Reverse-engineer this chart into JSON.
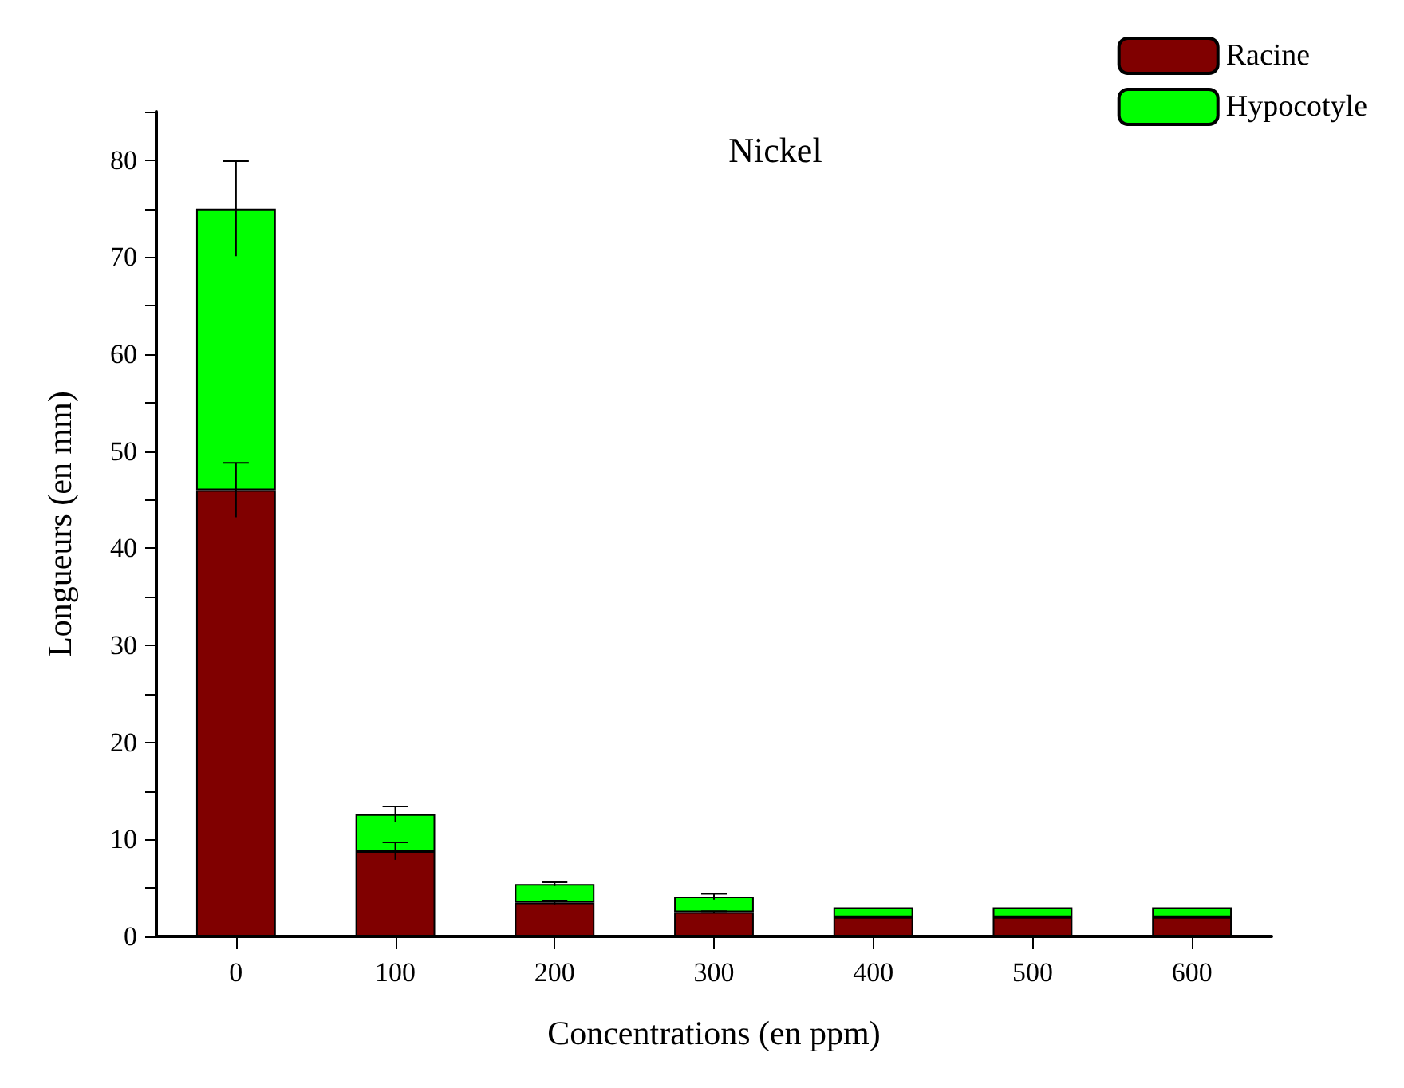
{
  "chart_data": {
    "type": "bar",
    "title": "Nickel",
    "xlabel": "Concentrations (en ppm)",
    "ylabel": "Longueurs (en mm)",
    "categories": [
      "0",
      "100",
      "200",
      "300",
      "400",
      "500",
      "600"
    ],
    "stacked": true,
    "series": [
      {
        "name": "Racine",
        "color": "#800000",
        "values": [
          46.0,
          8.8,
          3.5,
          2.5,
          2.0,
          2.0,
          2.0
        ],
        "errors": [
          2.8,
          0.9,
          0.2,
          0.1,
          null,
          null,
          null
        ]
      },
      {
        "name": "Hypocotyle",
        "color": "#00ff00",
        "values": [
          29.0,
          3.8,
          1.9,
          1.6,
          1.0,
          1.0,
          1.0
        ],
        "errors": [
          4.9,
          0.8,
          0.2,
          0.3,
          null,
          null,
          null
        ]
      }
    ],
    "ylim": [
      0,
      85
    ],
    "yticks": [
      0,
      10,
      20,
      30,
      40,
      50,
      60,
      70,
      80
    ],
    "legend": "top right",
    "grid": false
  }
}
